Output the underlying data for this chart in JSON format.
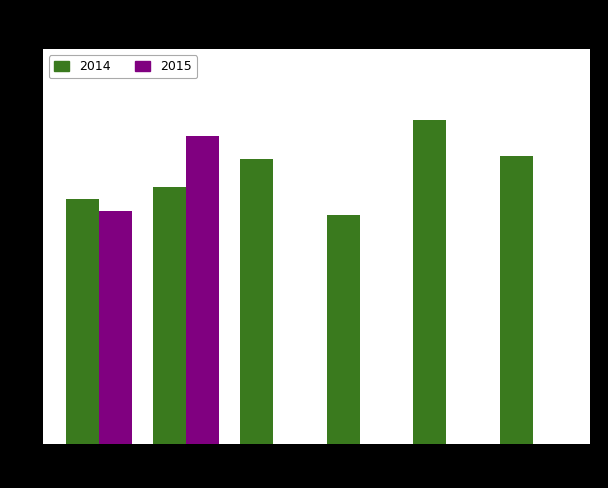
{
  "series": {
    "2014": [
      0.62,
      0.65,
      0.72,
      0.58,
      0.82,
      0.73
    ],
    "2015": [
      0.59,
      0.78,
      null,
      null,
      null,
      null
    ]
  },
  "n_groups": 6,
  "colors": {
    "2014": "#3a7a1e",
    "2015": "#800080"
  },
  "ylim": [
    0,
    1.0
  ],
  "figure_facecolor": "#000000",
  "plot_area_color": "#ffffff",
  "grid_color": "#cccccc",
  "bar_width": 0.38,
  "legend_fontsize": 9,
  "legend_edgecolor": "#aaaaaa"
}
